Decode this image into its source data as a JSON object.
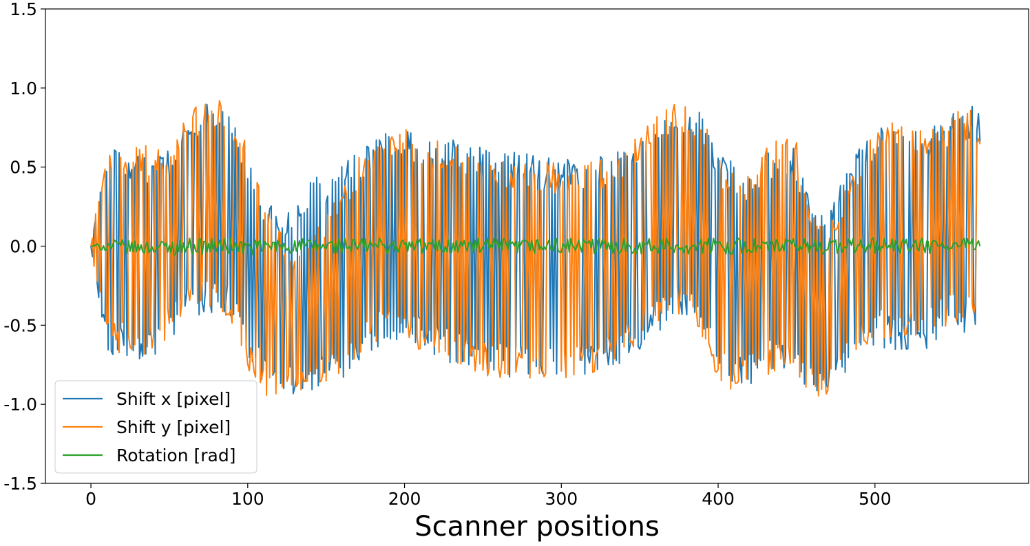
{
  "chart_data": {
    "type": "line",
    "title": "",
    "xlabel": "Scanner positions",
    "ylabel": "",
    "xlim": [
      -29,
      598
    ],
    "ylim": [
      -1.5,
      1.5
    ],
    "xticks": [
      0,
      100,
      200,
      300,
      400,
      500
    ],
    "xtick_labels": [
      "0",
      "100",
      "200",
      "300",
      "400",
      "500"
    ],
    "yticks": [
      -1.5,
      -1.0,
      -0.5,
      0.0,
      0.5,
      1.0,
      1.5
    ],
    "ytick_labels": [
      "-1.5",
      "-1.0",
      "-0.5",
      "0.0",
      "0.5",
      "1.0",
      "1.5"
    ],
    "grid": false,
    "legend_position": "lower-left",
    "x": [
      0,
      10,
      20,
      30,
      40,
      50,
      60,
      70,
      80,
      90,
      100,
      110,
      120,
      130,
      140,
      150,
      160,
      170,
      180,
      190,
      200,
      210,
      220,
      230,
      240,
      250,
      260,
      270,
      280,
      290,
      300,
      310,
      320,
      330,
      340,
      350,
      360,
      370,
      380,
      390,
      400,
      410,
      420,
      430,
      440,
      450,
      460,
      470,
      480,
      490,
      500,
      510,
      520,
      530,
      540,
      550,
      560,
      567
    ],
    "series": [
      {
        "name": "Shift x [pixel]",
        "color": "#1f77b4",
        "upper": [
          0.0,
          0.6,
          0.62,
          0.58,
          0.55,
          0.62,
          0.78,
          0.9,
          0.93,
          0.85,
          0.6,
          0.35,
          0.25,
          0.22,
          0.45,
          0.48,
          0.52,
          0.6,
          0.7,
          0.74,
          0.76,
          0.72,
          0.7,
          0.68,
          0.66,
          0.64,
          0.62,
          0.6,
          0.58,
          0.56,
          0.55,
          0.56,
          0.58,
          0.6,
          0.62,
          0.7,
          0.8,
          0.88,
          0.9,
          0.84,
          0.62,
          0.52,
          0.48,
          0.6,
          0.68,
          0.62,
          0.3,
          0.25,
          0.45,
          0.62,
          0.75,
          0.8,
          0.8,
          0.78,
          0.8,
          0.85,
          0.9,
          0.86
        ],
        "lower": [
          0.0,
          -0.68,
          -0.7,
          -0.72,
          -0.72,
          -0.65,
          -0.45,
          -0.44,
          -0.42,
          -0.45,
          -0.7,
          -0.88,
          -0.92,
          -0.94,
          -0.92,
          -0.9,
          -0.85,
          -0.8,
          -0.7,
          -0.62,
          -0.6,
          -0.64,
          -0.7,
          -0.74,
          -0.78,
          -0.8,
          -0.82,
          -0.84,
          -0.84,
          -0.85,
          -0.85,
          -0.84,
          -0.82,
          -0.78,
          -0.74,
          -0.66,
          -0.56,
          -0.5,
          -0.48,
          -0.55,
          -0.76,
          -0.9,
          -0.88,
          -0.82,
          -0.78,
          -0.9,
          -0.96,
          -0.95,
          -0.85,
          -0.7,
          -0.64,
          -0.66,
          -0.68,
          -0.66,
          -0.64,
          -0.6,
          -0.56,
          -0.5
        ]
      },
      {
        "name": "Shift y [pixel]",
        "color": "#ff7f0e",
        "upper": [
          0.0,
          0.7,
          0.68,
          0.66,
          0.64,
          0.68,
          0.82,
          0.92,
          0.94,
          0.86,
          0.65,
          0.3,
          0.1,
          -0.05,
          0.1,
          0.2,
          0.4,
          0.55,
          0.66,
          0.72,
          0.74,
          0.7,
          0.68,
          0.65,
          0.62,
          0.6,
          0.58,
          0.56,
          0.54,
          0.54,
          0.53,
          0.54,
          0.56,
          0.58,
          0.62,
          0.72,
          0.82,
          0.9,
          0.88,
          0.8,
          0.6,
          0.48,
          0.45,
          0.62,
          0.72,
          0.66,
          0.25,
          0.1,
          0.35,
          0.6,
          0.78,
          0.8,
          0.78,
          0.78,
          0.8,
          0.84,
          0.88,
          0.82
        ],
        "lower": [
          0.0,
          -0.66,
          -0.68,
          -0.7,
          -0.7,
          -0.55,
          -0.45,
          -0.4,
          -0.38,
          -0.5,
          -0.8,
          -0.94,
          -0.96,
          -0.95,
          -0.9,
          -0.86,
          -0.8,
          -0.72,
          -0.62,
          -0.58,
          -0.6,
          -0.66,
          -0.72,
          -0.76,
          -0.8,
          -0.82,
          -0.84,
          -0.84,
          -0.85,
          -0.85,
          -0.84,
          -0.82,
          -0.8,
          -0.76,
          -0.7,
          -0.6,
          -0.5,
          -0.44,
          -0.42,
          -0.6,
          -0.84,
          -0.92,
          -0.88,
          -0.82,
          -0.8,
          -0.92,
          -0.97,
          -0.96,
          -0.82,
          -0.66,
          -0.6,
          -0.6,
          -0.58,
          -0.56,
          -0.54,
          -0.5,
          -0.45,
          -0.4
        ]
      },
      {
        "name": "Rotation [rad]",
        "color": "#2ca02c",
        "upper": [
          0.0,
          0.04,
          0.04,
          0.03,
          0.04,
          0.04,
          0.05,
          0.05,
          0.05,
          0.05,
          0.04,
          0.04,
          0.05,
          0.05,
          0.05,
          0.05,
          0.05,
          0.05,
          0.06,
          0.05,
          0.05,
          0.05,
          0.05,
          0.05,
          0.05,
          0.05,
          0.05,
          0.04,
          0.05,
          0.05,
          0.05,
          0.05,
          0.05,
          0.05,
          0.06,
          0.05,
          0.05,
          0.05,
          0.05,
          0.05,
          0.05,
          0.05,
          0.05,
          0.05,
          0.05,
          0.05,
          0.05,
          0.05,
          0.05,
          0.05,
          0.06,
          0.05,
          0.05,
          0.05,
          0.05,
          0.05,
          0.05,
          0.04
        ],
        "lower": [
          0.0,
          -0.04,
          -0.04,
          -0.05,
          -0.05,
          -0.06,
          -0.05,
          -0.05,
          -0.05,
          -0.05,
          -0.06,
          -0.05,
          -0.05,
          -0.05,
          -0.06,
          -0.05,
          -0.05,
          -0.05,
          -0.05,
          -0.05,
          -0.05,
          -0.05,
          -0.05,
          -0.05,
          -0.05,
          -0.06,
          -0.05,
          -0.05,
          -0.05,
          -0.05,
          -0.05,
          -0.05,
          -0.05,
          -0.05,
          -0.05,
          -0.05,
          -0.05,
          -0.05,
          -0.05,
          -0.05,
          -0.05,
          -0.05,
          -0.05,
          -0.06,
          -0.05,
          -0.05,
          -0.05,
          -0.05,
          -0.05,
          -0.05,
          -0.05,
          -0.05,
          -0.05,
          -0.05,
          -0.05,
          -0.05,
          -0.05,
          -0.02
        ]
      }
    ]
  }
}
